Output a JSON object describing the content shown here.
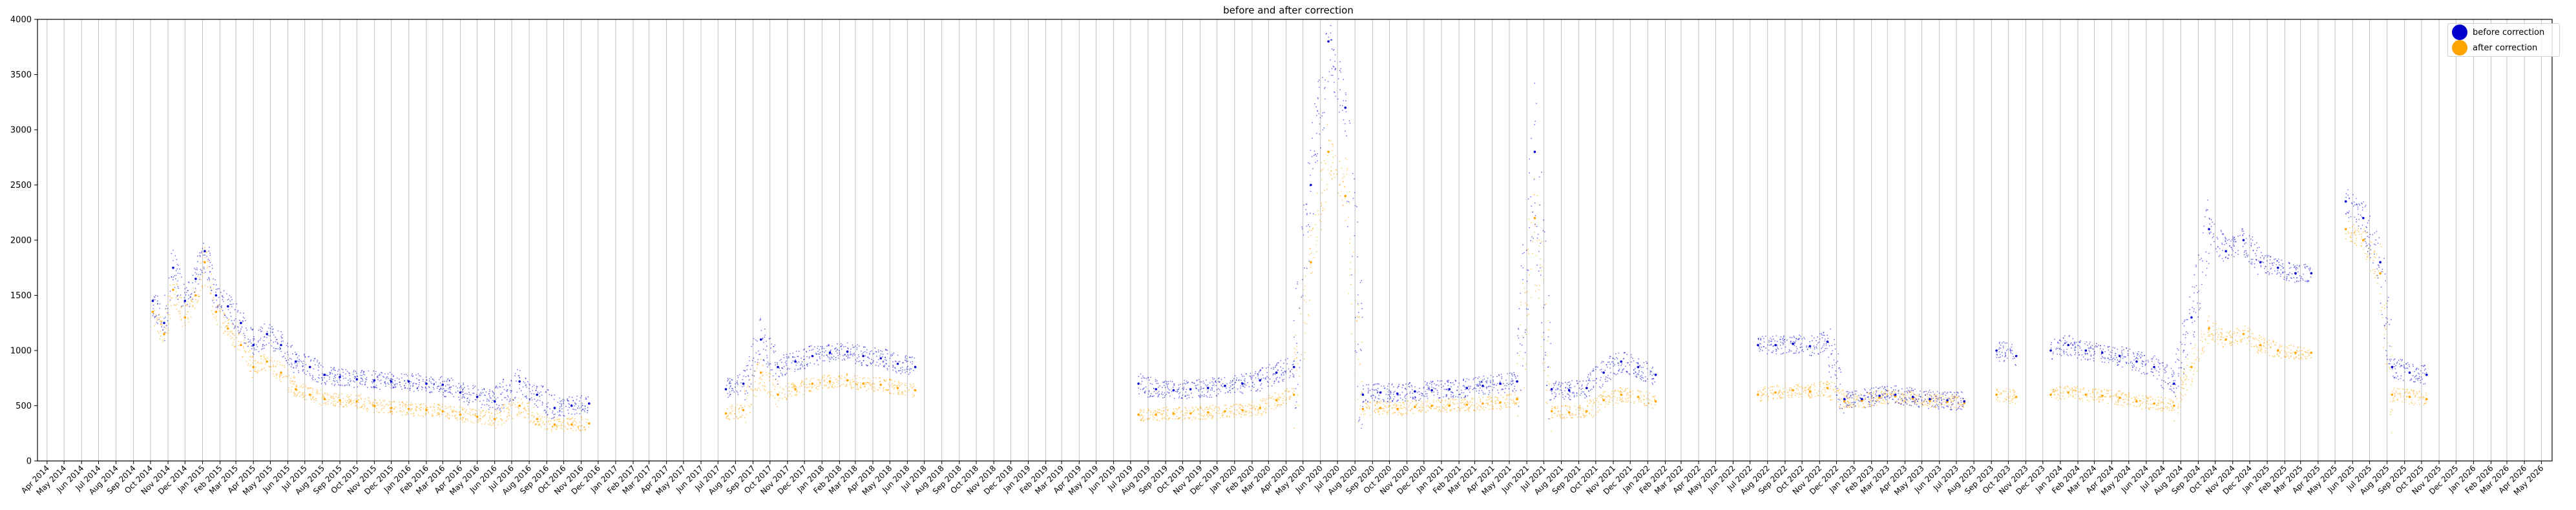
{
  "chart_data": {
    "type": "scatter",
    "title": "before and after correction",
    "xlabel": "",
    "ylabel": "",
    "x_axis_kind": "date",
    "xlim": [
      "2014-03-15",
      "2026-05-20"
    ],
    "ylim": [
      0,
      4000
    ],
    "yticks": [
      0,
      500,
      1000,
      1500,
      2000,
      2500,
      3000,
      3500,
      4000
    ],
    "x_tick_labels": [
      "Apr 2014",
      "May 2014",
      "Jun 2014",
      "Jul 2014",
      "Aug 2014",
      "Sep 2014",
      "Oct 2014",
      "Nov 2014",
      "Dec 2014",
      "Jan 2015",
      "Feb 2015",
      "Mar 2015",
      "Apr 2015",
      "May 2015",
      "Jun 2015",
      "Jul 2015",
      "Aug 2015",
      "Sep 2015",
      "Oct 2015",
      "Nov 2015",
      "Dec 2015",
      "Jan 2016",
      "Feb 2016",
      "Mar 2016",
      "Apr 2016",
      "May 2016",
      "Jun 2016",
      "Jul 2016",
      "Aug 2016",
      "Sep 2016",
      "Oct 2016",
      "Nov 2016",
      "Dec 2016",
      "Jan 2017",
      "Feb 2017",
      "Mar 2017",
      "Apr 2017",
      "May 2017",
      "Jun 2017",
      "Jul 2017",
      "Aug 2017",
      "Sep 2017",
      "Oct 2017",
      "Nov 2017",
      "Dec 2017",
      "Jan 2018",
      "Feb 2018",
      "Mar 2018",
      "Apr 2018",
      "May 2018",
      "Jun 2018",
      "Jul 2018",
      "Aug 2018",
      "Sep 2018",
      "Oct 2018",
      "Nov 2018",
      "Dec 2018",
      "Jan 2019",
      "Feb 2019",
      "Mar 2019",
      "Apr 2019",
      "May 2019",
      "Jun 2019",
      "Jul 2019",
      "Aug 2019",
      "Sep 2019",
      "Oct 2019",
      "Nov 2019",
      "Dec 2019",
      "Jan 2020",
      "Feb 2020",
      "Mar 2020",
      "Apr 2020",
      "May 2020",
      "Jun 2020",
      "Jul 2020",
      "Aug 2020",
      "Sep 2020",
      "Oct 2020",
      "Nov 2020",
      "Dec 2020",
      "Jan 2021",
      "Feb 2021",
      "Mar 2021",
      "Apr 2021",
      "May 2021",
      "Jun 2021",
      "Jul 2021",
      "Aug 2021",
      "Sep 2021",
      "Oct 2021",
      "Nov 2021",
      "Dec 2021",
      "Jan 2022",
      "Feb 2022",
      "Mar 2022",
      "Apr 2022",
      "May 2022",
      "Jun 2022",
      "Jul 2022",
      "Aug 2022",
      "Sep 2022",
      "Oct 2022",
      "Nov 2022",
      "Dec 2022",
      "Jan 2023",
      "Feb 2023",
      "Mar 2023",
      "Apr 2023",
      "May 2023",
      "Jun 2023",
      "Jul 2023",
      "Aug 2023",
      "Sep 2023",
      "Oct 2023",
      "Nov 2023",
      "Dec 2023",
      "Jan 2024",
      "Feb 2024",
      "Mar 2024",
      "Apr 2024",
      "May 2024",
      "Jun 2024",
      "Jul 2024",
      "Aug 2024",
      "Sep 2024",
      "Oct 2024",
      "Nov 2024",
      "Dec 2024",
      "Jan 2025",
      "Feb 2025",
      "Mar 2025",
      "Apr 2025",
      "May 2025",
      "Jun 2025",
      "Jul 2025",
      "Aug 2025",
      "Sep 2025",
      "Oct 2025",
      "Nov 2025",
      "Dec 2025",
      "Jan 2026",
      "Feb 2026",
      "Mar 2026",
      "Apr 2026",
      "May 2026"
    ],
    "grid": {
      "x": true,
      "y": false
    },
    "legend_position": "top-right",
    "series": [
      {
        "name": "before correction",
        "color": "#0000cd",
        "points": [
          [
            "2014-10-05",
            1450
          ],
          [
            "2014-10-25",
            1250
          ],
          [
            "2014-11-10",
            1750
          ],
          [
            "2014-12-01",
            1450
          ],
          [
            "2014-12-20",
            1650
          ],
          [
            "2015-01-05",
            1900
          ],
          [
            "2015-01-25",
            1500
          ],
          [
            "2015-02-15",
            1400
          ],
          [
            "2015-03-10",
            1250
          ],
          [
            "2015-04-01",
            1050
          ],
          [
            "2015-04-25",
            1150
          ],
          [
            "2015-05-20",
            1050
          ],
          [
            "2015-06-15",
            900
          ],
          [
            "2015-07-10",
            850
          ],
          [
            "2015-08-05",
            780
          ],
          [
            "2015-09-01",
            760
          ],
          [
            "2015-10-01",
            740
          ],
          [
            "2015-11-01",
            730
          ],
          [
            "2015-12-01",
            720
          ],
          [
            "2016-01-01",
            720
          ],
          [
            "2016-02-01",
            700
          ],
          [
            "2016-03-01",
            690
          ],
          [
            "2016-04-01",
            620
          ],
          [
            "2016-05-01",
            580
          ],
          [
            "2016-06-01",
            540
          ],
          [
            "2016-07-15",
            720
          ],
          [
            "2016-08-15",
            600
          ],
          [
            "2016-09-15",
            480
          ],
          [
            "2016-10-15",
            500
          ],
          [
            "2016-11-15",
            520
          ],
          [
            "2017-07-15",
            650
          ],
          [
            "2017-08-15",
            700
          ],
          [
            "2017-09-15",
            1100
          ],
          [
            "2017-10-15",
            850
          ],
          [
            "2017-11-15",
            900
          ],
          [
            "2017-12-15",
            950
          ],
          [
            "2018-01-15",
            980
          ],
          [
            "2018-02-15",
            990
          ],
          [
            "2018-03-15",
            950
          ],
          [
            "2018-04-15",
            930
          ],
          [
            "2018-05-15",
            880
          ],
          [
            "2018-06-15",
            850
          ],
          [
            "2019-07-15",
            700
          ],
          [
            "2019-08-15",
            650
          ],
          [
            "2019-09-15",
            640
          ],
          [
            "2019-10-15",
            650
          ],
          [
            "2019-11-15",
            660
          ],
          [
            "2019-12-15",
            680
          ],
          [
            "2020-01-15",
            700
          ],
          [
            "2020-02-15",
            730
          ],
          [
            "2020-03-15",
            800
          ],
          [
            "2020-04-15",
            850
          ],
          [
            "2020-05-15",
            2500
          ],
          [
            "2020-06-15",
            3800
          ],
          [
            "2020-07-15",
            3200
          ],
          [
            "2020-08-15",
            600
          ],
          [
            "2020-09-15",
            620
          ],
          [
            "2020-10-15",
            610
          ],
          [
            "2020-11-15",
            630
          ],
          [
            "2020-12-15",
            640
          ],
          [
            "2021-01-15",
            650
          ],
          [
            "2021-02-15",
            660
          ],
          [
            "2021-03-15",
            680
          ],
          [
            "2021-04-15",
            700
          ],
          [
            "2021-05-15",
            720
          ],
          [
            "2021-06-15",
            2800
          ],
          [
            "2021-07-15",
            650
          ],
          [
            "2021-08-15",
            640
          ],
          [
            "2021-09-15",
            660
          ],
          [
            "2021-10-15",
            800
          ],
          [
            "2021-11-15",
            900
          ],
          [
            "2021-12-15",
            850
          ],
          [
            "2022-01-15",
            780
          ],
          [
            "2022-07-15",
            1050
          ],
          [
            "2022-08-15",
            1050
          ],
          [
            "2022-09-15",
            1060
          ],
          [
            "2022-10-15",
            1040
          ],
          [
            "2022-11-15",
            1080
          ],
          [
            "2022-12-15",
            560
          ],
          [
            "2023-01-15",
            560
          ],
          [
            "2023-02-15",
            590
          ],
          [
            "2023-03-15",
            600
          ],
          [
            "2023-04-15",
            580
          ],
          [
            "2023-05-15",
            560
          ],
          [
            "2023-06-15",
            550
          ],
          [
            "2023-07-15",
            540
          ],
          [
            "2023-09-10",
            1000
          ],
          [
            "2023-10-15",
            950
          ],
          [
            "2023-12-15",
            1000
          ],
          [
            "2024-01-15",
            1050
          ],
          [
            "2024-02-15",
            1000
          ],
          [
            "2024-03-15",
            980
          ],
          [
            "2024-04-15",
            950
          ],
          [
            "2024-05-15",
            900
          ],
          [
            "2024-06-15",
            850
          ],
          [
            "2024-07-20",
            700
          ],
          [
            "2024-08-20",
            1300
          ],
          [
            "2024-09-20",
            2100
          ],
          [
            "2024-10-20",
            1900
          ],
          [
            "2024-11-20",
            2000
          ],
          [
            "2024-12-20",
            1800
          ],
          [
            "2025-01-20",
            1750
          ],
          [
            "2025-02-20",
            1700
          ],
          [
            "2025-03-20",
            1700
          ],
          [
            "2025-05-20",
            2350
          ],
          [
            "2025-06-20",
            2200
          ],
          [
            "2025-07-20",
            1800
          ],
          [
            "2025-08-10",
            850
          ],
          [
            "2025-09-10",
            800
          ],
          [
            "2025-10-10",
            780
          ]
        ]
      },
      {
        "name": "after correction",
        "color": "#ffa500",
        "points": [
          [
            "2014-10-05",
            1350
          ],
          [
            "2014-10-25",
            1150
          ],
          [
            "2014-11-10",
            1550
          ],
          [
            "2014-12-01",
            1300
          ],
          [
            "2014-12-20",
            1500
          ],
          [
            "2015-01-05",
            1800
          ],
          [
            "2015-01-25",
            1350
          ],
          [
            "2015-02-15",
            1200
          ],
          [
            "2015-03-10",
            1050
          ],
          [
            "2015-04-01",
            850
          ],
          [
            "2015-04-25",
            900
          ],
          [
            "2015-05-20",
            800
          ],
          [
            "2015-06-15",
            650
          ],
          [
            "2015-07-10",
            600
          ],
          [
            "2015-08-05",
            560
          ],
          [
            "2015-09-01",
            550
          ],
          [
            "2015-10-01",
            540
          ],
          [
            "2015-11-01",
            500
          ],
          [
            "2015-12-01",
            480
          ],
          [
            "2016-01-01",
            470
          ],
          [
            "2016-02-01",
            460
          ],
          [
            "2016-03-01",
            450
          ],
          [
            "2016-04-01",
            420
          ],
          [
            "2016-05-01",
            400
          ],
          [
            "2016-06-01",
            380
          ],
          [
            "2016-07-15",
            500
          ],
          [
            "2016-08-15",
            380
          ],
          [
            "2016-09-15",
            330
          ],
          [
            "2016-10-15",
            330
          ],
          [
            "2016-11-15",
            340
          ],
          [
            "2017-07-15",
            430
          ],
          [
            "2017-08-15",
            460
          ],
          [
            "2017-09-15",
            800
          ],
          [
            "2017-10-15",
            600
          ],
          [
            "2017-11-15",
            650
          ],
          [
            "2017-12-15",
            700
          ],
          [
            "2018-01-15",
            720
          ],
          [
            "2018-02-15",
            730
          ],
          [
            "2018-03-15",
            700
          ],
          [
            "2018-04-15",
            690
          ],
          [
            "2018-05-15",
            660
          ],
          [
            "2018-06-15",
            640
          ],
          [
            "2019-07-15",
            420
          ],
          [
            "2019-08-15",
            420
          ],
          [
            "2019-09-15",
            430
          ],
          [
            "2019-10-15",
            430
          ],
          [
            "2019-11-15",
            440
          ],
          [
            "2019-12-15",
            450
          ],
          [
            "2020-01-15",
            460
          ],
          [
            "2020-02-15",
            480
          ],
          [
            "2020-03-15",
            550
          ],
          [
            "2020-04-15",
            600
          ],
          [
            "2020-05-15",
            1800
          ],
          [
            "2020-06-15",
            2800
          ],
          [
            "2020-07-15",
            2400
          ],
          [
            "2020-08-15",
            470
          ],
          [
            "2020-09-15",
            480
          ],
          [
            "2020-10-15",
            470
          ],
          [
            "2020-11-15",
            490
          ],
          [
            "2020-12-15",
            500
          ],
          [
            "2021-01-15",
            500
          ],
          [
            "2021-02-15",
            510
          ],
          [
            "2021-03-15",
            520
          ],
          [
            "2021-04-15",
            530
          ],
          [
            "2021-05-15",
            560
          ],
          [
            "2021-06-15",
            2200
          ],
          [
            "2021-07-15",
            450
          ],
          [
            "2021-08-15",
            440
          ],
          [
            "2021-09-15",
            450
          ],
          [
            "2021-10-15",
            550
          ],
          [
            "2021-11-15",
            600
          ],
          [
            "2021-12-15",
            580
          ],
          [
            "2022-01-15",
            540
          ],
          [
            "2022-07-15",
            600
          ],
          [
            "2022-08-15",
            620
          ],
          [
            "2022-09-15",
            640
          ],
          [
            "2022-10-15",
            630
          ],
          [
            "2022-11-15",
            660
          ],
          [
            "2022-12-15",
            540
          ],
          [
            "2023-01-15",
            545
          ],
          [
            "2023-02-15",
            575
          ],
          [
            "2023-03-15",
            585
          ],
          [
            "2023-04-15",
            565
          ],
          [
            "2023-05-15",
            545
          ],
          [
            "2023-06-15",
            535
          ],
          [
            "2023-07-15",
            525
          ],
          [
            "2023-09-10",
            600
          ],
          [
            "2023-10-15",
            580
          ],
          [
            "2023-12-15",
            600
          ],
          [
            "2024-01-15",
            620
          ],
          [
            "2024-02-15",
            600
          ],
          [
            "2024-03-15",
            590
          ],
          [
            "2024-04-15",
            570
          ],
          [
            "2024-05-15",
            540
          ],
          [
            "2024-06-15",
            520
          ],
          [
            "2024-07-20",
            500
          ],
          [
            "2024-08-20",
            850
          ],
          [
            "2024-09-20",
            1200
          ],
          [
            "2024-10-20",
            1100
          ],
          [
            "2024-11-20",
            1150
          ],
          [
            "2024-12-20",
            1050
          ],
          [
            "2025-01-20",
            1000
          ],
          [
            "2025-02-20",
            980
          ],
          [
            "2025-03-20",
            980
          ],
          [
            "2025-05-20",
            2100
          ],
          [
            "2025-06-20",
            2000
          ],
          [
            "2025-07-20",
            1700
          ],
          [
            "2025-08-10",
            600
          ],
          [
            "2025-09-10",
            580
          ],
          [
            "2025-10-10",
            560
          ]
        ]
      }
    ]
  }
}
